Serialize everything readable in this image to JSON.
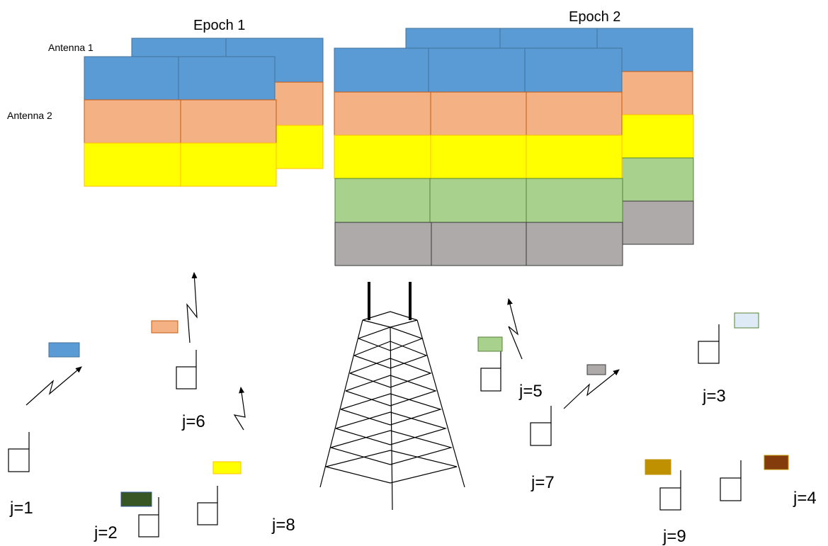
{
  "labels": {
    "epoch1": "Epoch 1",
    "epoch2": "Epoch 2",
    "antenna1": "Antenna 1",
    "antenna2": "Antenna 2"
  },
  "users": [
    {
      "id": "user-1",
      "label": "j=1",
      "resource_color": "#5b9bd5"
    },
    {
      "id": "user-2",
      "label": "j=2",
      "resource_color": "#375623"
    },
    {
      "id": "user-3",
      "label": "j=3",
      "resource_color": "#deebf7"
    },
    {
      "id": "user-4",
      "label": "j=4",
      "resource_color": "#843c0c"
    },
    {
      "id": "user-5",
      "label": "j=5",
      "resource_color": "#a9d18e"
    },
    {
      "id": "user-6",
      "label": "j=6",
      "resource_color": "#f4b183"
    },
    {
      "id": "user-7",
      "label": "j=7",
      "resource_color": "#aeaaaa"
    },
    {
      "id": "user-8",
      "label": "j=8",
      "resource_color": "#ffff00"
    },
    {
      "id": "user-9",
      "label": "j=9",
      "resource_color": "#bf9000"
    }
  ],
  "colors": {
    "blue": "#5b9bd5",
    "orange": "#f4b183",
    "yellow": "#ffff00",
    "green": "#a9d18e",
    "gray": "#aeaaaa",
    "blue_border": "#41719c",
    "orange_border": "#c55a11",
    "yellow_border": "#ffc000",
    "green_border": "#548235",
    "gray_border": "#3b3838"
  },
  "icons": [
    "user-device-icon",
    "wireless-link-icon",
    "base-station-tower-icon"
  ]
}
